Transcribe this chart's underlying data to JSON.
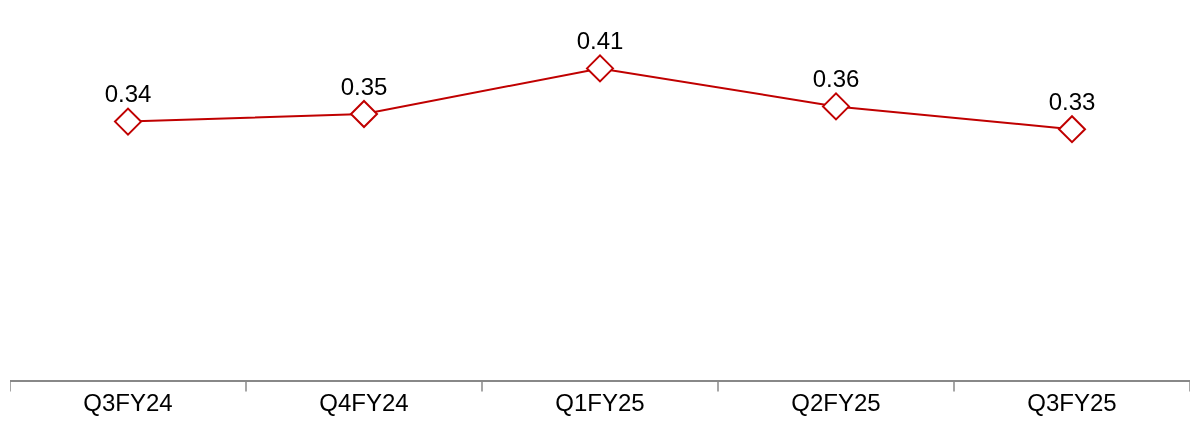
{
  "chart_data": {
    "type": "line",
    "categories": [
      "Q3FY24",
      "Q4FY24",
      "Q1FY25",
      "Q2FY25",
      "Q3FY25"
    ],
    "series": [
      {
        "color": "#c00000",
        "values": [
          0.34,
          0.35,
          0.41,
          0.36,
          0.33
        ]
      }
    ],
    "ylim": [
      0,
      0.5
    ],
    "data_labels": true,
    "marker": "diamond",
    "line_style": "solid"
  }
}
